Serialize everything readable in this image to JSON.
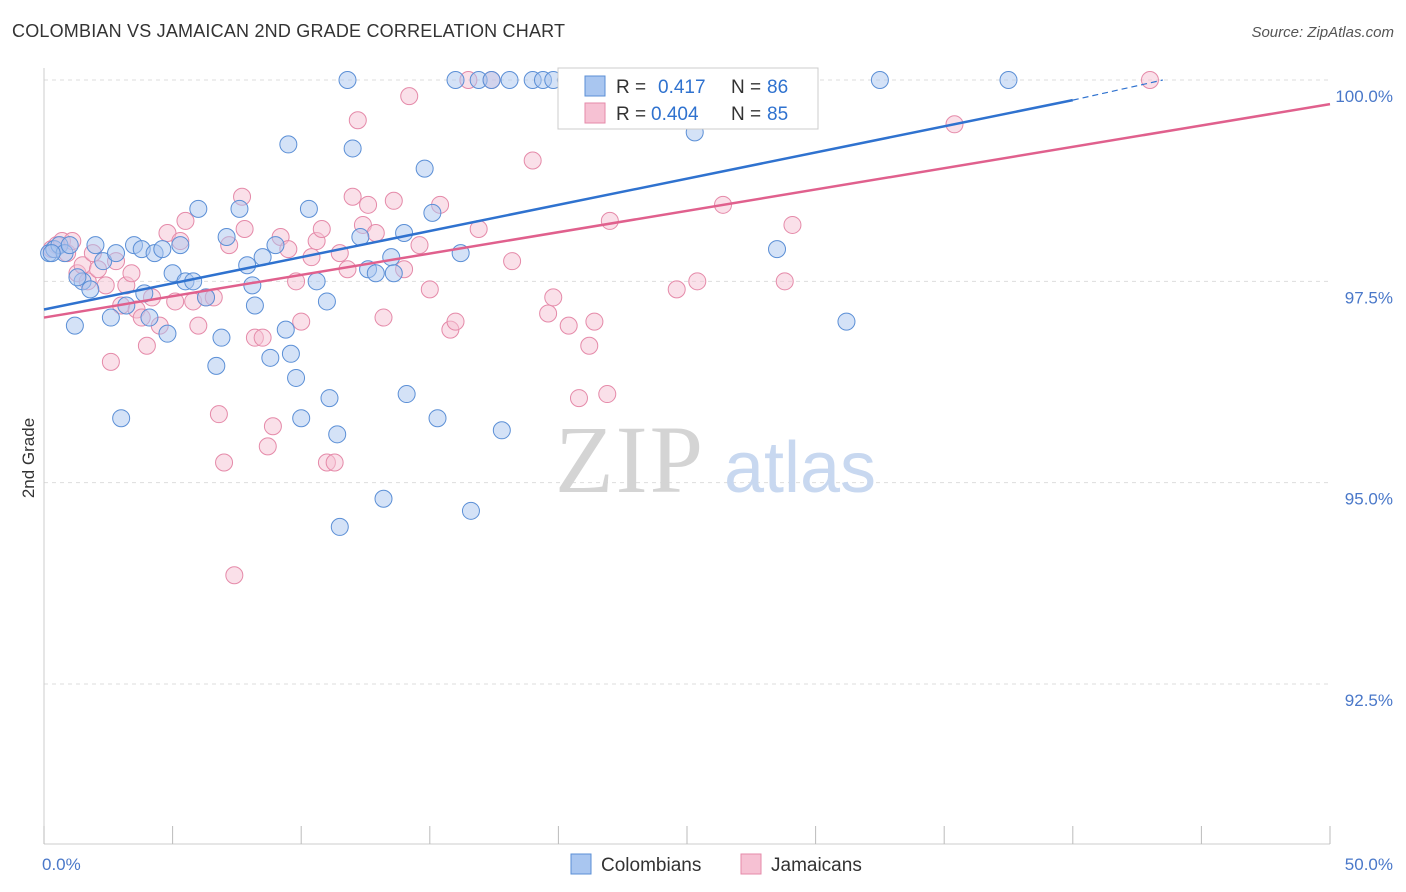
{
  "title": "COLOMBIAN VS JAMAICAN 2ND GRADE CORRELATION CHART",
  "source": "Source: ZipAtlas.com",
  "watermark": {
    "zip": "ZIP",
    "atlas": "atlas"
  },
  "colors": {
    "colombians_fill": "#a9c6f0",
    "colombians_stroke": "#5b8fd6",
    "colombians_line": "#2f72cf",
    "jamaicans_fill": "#f6c1d3",
    "jamaicans_stroke": "#e58aa9",
    "jamaicans_line": "#e0608d",
    "tick_text": "#4a78c9",
    "grid": "#dddddd"
  },
  "legend": {
    "rows": [
      {
        "r_label": "R =",
        "r_value": "0.417",
        "n_label": "N =",
        "n_value": "86"
      },
      {
        "r_label": "R =",
        "r_value": "0.404",
        "n_label": "N =",
        "n_value": "85"
      }
    ]
  },
  "chart_data": {
    "type": "scatter",
    "title": "COLOMBIAN VS JAMAICAN 2ND GRADE CORRELATION CHART",
    "xlabel": "",
    "ylabel": "2nd Grade",
    "xlim": [
      0,
      50
    ],
    "ylim": [
      90.5,
      100.1
    ],
    "x_tick_labels": [
      "0.0%",
      "50.0%"
    ],
    "y_ticks": [
      92.5,
      95.0,
      97.5,
      100.0
    ],
    "y_tick_labels": [
      "92.5%",
      "95.0%",
      "97.5%",
      "100.0%"
    ],
    "grid": true,
    "legend_position": "top-center",
    "series": [
      {
        "name": "Colombians",
        "r": 0.417,
        "n": 86,
        "trend": {
          "x": [
            0,
            40
          ],
          "y": [
            97.15,
            99.75
          ],
          "dashed_to": [
            43.5,
            100.0
          ]
        },
        "points": [
          [
            0.2,
            97.85
          ],
          [
            0.4,
            97.9
          ],
          [
            0.6,
            97.95
          ],
          [
            0.8,
            97.85
          ],
          [
            1.0,
            97.95
          ],
          [
            1.2,
            96.95
          ],
          [
            1.5,
            97.5
          ],
          [
            1.8,
            97.4
          ],
          [
            2.0,
            97.95
          ],
          [
            2.3,
            97.75
          ],
          [
            2.6,
            97.05
          ],
          [
            2.8,
            97.85
          ],
          [
            3.0,
            95.8
          ],
          [
            3.2,
            97.2
          ],
          [
            3.5,
            97.95
          ],
          [
            3.8,
            97.9
          ],
          [
            3.9,
            97.35
          ],
          [
            4.1,
            97.05
          ],
          [
            4.3,
            97.85
          ],
          [
            4.6,
            97.9
          ],
          [
            4.8,
            96.85
          ],
          [
            5.0,
            97.6
          ],
          [
            5.3,
            97.95
          ],
          [
            5.5,
            97.5
          ],
          [
            5.8,
            97.5
          ],
          [
            6.0,
            98.4
          ],
          [
            6.3,
            97.3
          ],
          [
            6.7,
            96.45
          ],
          [
            6.9,
            96.8
          ],
          [
            7.1,
            98.05
          ],
          [
            7.6,
            98.4
          ],
          [
            7.9,
            97.7
          ],
          [
            8.1,
            97.45
          ],
          [
            8.2,
            97.2
          ],
          [
            8.5,
            97.8
          ],
          [
            8.8,
            96.55
          ],
          [
            9.0,
            97.95
          ],
          [
            9.4,
            96.9
          ],
          [
            9.6,
            96.6
          ],
          [
            9.5,
            99.2
          ],
          [
            9.8,
            96.3
          ],
          [
            10.0,
            95.8
          ],
          [
            10.3,
            98.4
          ],
          [
            10.6,
            97.5
          ],
          [
            11.0,
            97.25
          ],
          [
            11.1,
            96.05
          ],
          [
            11.4,
            95.6
          ],
          [
            11.5,
            94.45
          ],
          [
            11.8,
            100.0
          ],
          [
            12.0,
            99.15
          ],
          [
            12.3,
            98.05
          ],
          [
            12.6,
            97.65
          ],
          [
            12.9,
            97.6
          ],
          [
            13.2,
            94.8
          ],
          [
            13.5,
            97.8
          ],
          [
            13.6,
            97.6
          ],
          [
            14.0,
            98.1
          ],
          [
            14.1,
            96.1
          ],
          [
            14.8,
            98.9
          ],
          [
            15.1,
            98.35
          ],
          [
            15.3,
            95.8
          ],
          [
            16.0,
            100.0
          ],
          [
            16.2,
            97.85
          ],
          [
            16.6,
            94.65
          ],
          [
            16.9,
            100.0
          ],
          [
            17.4,
            100.0
          ],
          [
            17.8,
            95.65
          ],
          [
            18.1,
            100.0
          ],
          [
            19.0,
            100.0
          ],
          [
            19.4,
            100.0
          ],
          [
            19.8,
            100.0
          ],
          [
            20.3,
            100.0
          ],
          [
            21.0,
            100.0
          ],
          [
            22.0,
            100.0
          ],
          [
            22.8,
            100.0
          ],
          [
            24.3,
            100.0
          ],
          [
            25.1,
            100.0
          ],
          [
            25.3,
            99.35
          ],
          [
            26.5,
            100.0
          ],
          [
            28.5,
            97.9
          ],
          [
            29.7,
            99.5
          ],
          [
            31.2,
            97.0
          ],
          [
            32.5,
            100.0
          ],
          [
            37.5,
            100.0
          ],
          [
            1.3,
            97.55
          ],
          [
            0.3,
            97.85
          ]
        ]
      },
      {
        "name": "Jamaicans",
        "r": 0.404,
        "n": 85,
        "trend": {
          "x": [
            0,
            50
          ],
          "y": [
            97.05,
            99.7
          ]
        },
        "points": [
          [
            0.3,
            97.9
          ],
          [
            0.5,
            97.95
          ],
          [
            0.7,
            98.0
          ],
          [
            0.9,
            97.85
          ],
          [
            1.1,
            98.0
          ],
          [
            1.3,
            97.6
          ],
          [
            1.5,
            97.7
          ],
          [
            1.7,
            97.5
          ],
          [
            1.9,
            97.85
          ],
          [
            2.1,
            97.65
          ],
          [
            2.4,
            97.45
          ],
          [
            2.6,
            96.5
          ],
          [
            2.8,
            97.75
          ],
          [
            3.0,
            97.2
          ],
          [
            3.2,
            97.45
          ],
          [
            3.4,
            97.6
          ],
          [
            3.6,
            97.15
          ],
          [
            3.8,
            97.05
          ],
          [
            4.0,
            96.7
          ],
          [
            4.2,
            97.3
          ],
          [
            4.5,
            96.95
          ],
          [
            4.8,
            98.1
          ],
          [
            5.1,
            97.25
          ],
          [
            5.3,
            98.0
          ],
          [
            5.5,
            98.25
          ],
          [
            5.8,
            97.25
          ],
          [
            6.0,
            96.95
          ],
          [
            6.3,
            97.3
          ],
          [
            6.6,
            97.3
          ],
          [
            6.8,
            95.85
          ],
          [
            7.0,
            95.25
          ],
          [
            7.2,
            97.95
          ],
          [
            7.4,
            93.85
          ],
          [
            7.7,
            98.55
          ],
          [
            7.8,
            98.15
          ],
          [
            8.2,
            96.8
          ],
          [
            8.5,
            96.8
          ],
          [
            8.7,
            95.45
          ],
          [
            8.9,
            95.7
          ],
          [
            9.2,
            98.05
          ],
          [
            9.5,
            97.9
          ],
          [
            9.8,
            97.5
          ],
          [
            10.0,
            97.0
          ],
          [
            10.4,
            97.8
          ],
          [
            10.6,
            98.0
          ],
          [
            10.8,
            98.15
          ],
          [
            11.0,
            95.25
          ],
          [
            11.3,
            95.25
          ],
          [
            11.5,
            97.85
          ],
          [
            11.8,
            97.65
          ],
          [
            12.0,
            98.55
          ],
          [
            12.2,
            99.5
          ],
          [
            12.4,
            98.2
          ],
          [
            12.6,
            98.45
          ],
          [
            12.9,
            98.1
          ],
          [
            13.2,
            97.05
          ],
          [
            13.6,
            98.5
          ],
          [
            14.0,
            97.65
          ],
          [
            14.2,
            99.8
          ],
          [
            14.6,
            97.95
          ],
          [
            15.0,
            97.4
          ],
          [
            15.4,
            98.45
          ],
          [
            15.8,
            96.9
          ],
          [
            16.0,
            97.0
          ],
          [
            16.5,
            100.0
          ],
          [
            16.9,
            98.15
          ],
          [
            17.4,
            100.0
          ],
          [
            18.2,
            97.75
          ],
          [
            19.0,
            99.0
          ],
          [
            19.6,
            97.1
          ],
          [
            19.8,
            97.3
          ],
          [
            20.4,
            96.95
          ],
          [
            20.8,
            96.05
          ],
          [
            21.2,
            96.7
          ],
          [
            21.4,
            97.0
          ],
          [
            21.9,
            96.1
          ],
          [
            22.0,
            98.25
          ],
          [
            24.6,
            97.4
          ],
          [
            25.4,
            97.5
          ],
          [
            26.4,
            98.45
          ],
          [
            28.0,
            100.0
          ],
          [
            28.8,
            97.5
          ],
          [
            29.1,
            98.2
          ],
          [
            35.4,
            99.45
          ],
          [
            43.0,
            100.0
          ]
        ]
      }
    ]
  },
  "bottom_legend": [
    {
      "label": "Colombians"
    },
    {
      "label": "Jamaicans"
    }
  ]
}
